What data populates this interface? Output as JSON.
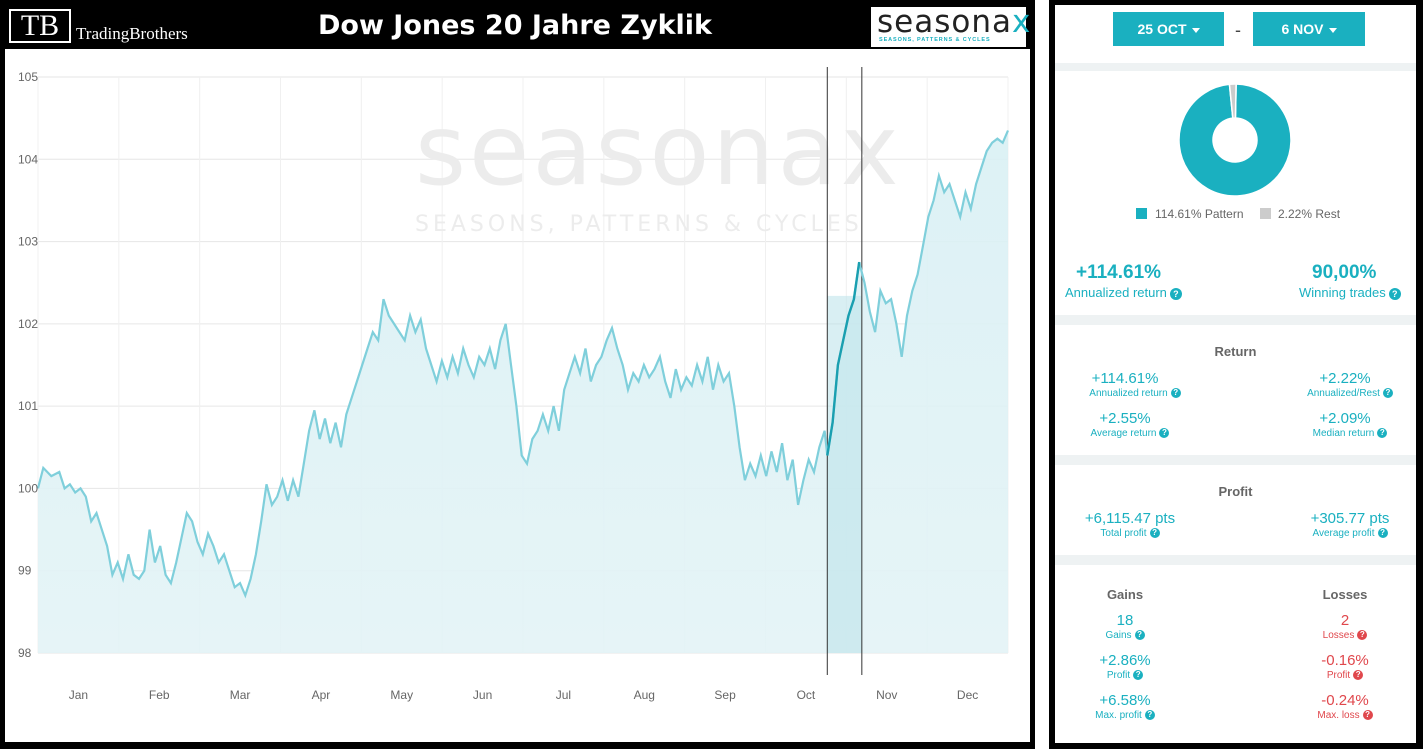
{
  "header": {
    "logo_mark": "TB",
    "logo_name": "TradingBrothers",
    "title": "Dow Jones 20 Jahre Zyklik",
    "brand": "seasona",
    "brand_x": "x",
    "brand_tagline": "SEASONS, PATTERNS & CYCLES"
  },
  "watermark": {
    "word": "seasonax",
    "tagline": "SEASONS, PATTERNS & CYCLES"
  },
  "colors": {
    "accent": "#1ab0c0",
    "line": "#7fcfdb",
    "highlight_line": "#1a9fb0",
    "loss": "#e0474c",
    "rest": "#cccccc"
  },
  "chart_data": {
    "type": "line",
    "title": "Dow Jones 20 Jahre Zyklik",
    "xlabel": "",
    "ylabel": "",
    "x_ticks": [
      "Jan",
      "Feb",
      "Mar",
      "Apr",
      "May",
      "Jun",
      "Jul",
      "Aug",
      "Sep",
      "Oct",
      "Nov",
      "Dec"
    ],
    "y_ticks": [
      98,
      99,
      100,
      101,
      102,
      103,
      104,
      105
    ],
    "ylim": [
      98,
      105
    ],
    "xlim": [
      0,
      365
    ],
    "grid": true,
    "highlight_window": {
      "start": "25 OCT",
      "end": "6 NOV",
      "x_start": 297,
      "x_end": 310
    },
    "series": [
      {
        "values": [
          [
            0,
            100.0
          ],
          [
            2,
            100.25
          ],
          [
            5,
            100.15
          ],
          [
            8,
            100.2
          ],
          [
            10,
            100.0
          ],
          [
            12,
            100.05
          ],
          [
            14,
            99.95
          ],
          [
            16,
            100.0
          ],
          [
            18,
            99.9
          ],
          [
            20,
            99.6
          ],
          [
            22,
            99.7
          ],
          [
            24,
            99.5
          ],
          [
            26,
            99.3
          ],
          [
            28,
            98.95
          ],
          [
            30,
            99.1
          ],
          [
            32,
            98.9
          ],
          [
            34,
            99.2
          ],
          [
            36,
            98.95
          ],
          [
            38,
            98.9
          ],
          [
            40,
            99.0
          ],
          [
            42,
            99.5
          ],
          [
            44,
            99.1
          ],
          [
            46,
            99.3
          ],
          [
            48,
            98.95
          ],
          [
            50,
            98.85
          ],
          [
            52,
            99.1
          ],
          [
            54,
            99.4
          ],
          [
            56,
            99.7
          ],
          [
            58,
            99.6
          ],
          [
            60,
            99.35
          ],
          [
            62,
            99.2
          ],
          [
            64,
            99.45
          ],
          [
            66,
            99.3
          ],
          [
            68,
            99.1
          ],
          [
            70,
            99.2
          ],
          [
            72,
            99.0
          ],
          [
            74,
            98.8
          ],
          [
            76,
            98.85
          ],
          [
            78,
            98.7
          ],
          [
            80,
            98.9
          ],
          [
            82,
            99.2
          ],
          [
            84,
            99.6
          ],
          [
            86,
            100.05
          ],
          [
            88,
            99.8
          ],
          [
            90,
            99.9
          ],
          [
            92,
            100.1
          ],
          [
            94,
            99.85
          ],
          [
            96,
            100.1
          ],
          [
            98,
            99.9
          ],
          [
            100,
            100.3
          ],
          [
            102,
            100.7
          ],
          [
            104,
            100.95
          ],
          [
            106,
            100.6
          ],
          [
            108,
            100.85
          ],
          [
            110,
            100.55
          ],
          [
            112,
            100.8
          ],
          [
            114,
            100.5
          ],
          [
            116,
            100.9
          ],
          [
            118,
            101.1
          ],
          [
            120,
            101.3
          ],
          [
            122,
            101.5
          ],
          [
            124,
            101.7
          ],
          [
            126,
            101.9
          ],
          [
            128,
            101.8
          ],
          [
            130,
            102.3
          ],
          [
            132,
            102.1
          ],
          [
            134,
            102.0
          ],
          [
            136,
            101.9
          ],
          [
            138,
            101.8
          ],
          [
            140,
            102.1
          ],
          [
            142,
            101.9
          ],
          [
            144,
            102.05
          ],
          [
            146,
            101.7
          ],
          [
            148,
            101.5
          ],
          [
            150,
            101.3
          ],
          [
            152,
            101.55
          ],
          [
            154,
            101.35
          ],
          [
            156,
            101.6
          ],
          [
            158,
            101.4
          ],
          [
            160,
            101.7
          ],
          [
            162,
            101.5
          ],
          [
            164,
            101.35
          ],
          [
            166,
            101.6
          ],
          [
            168,
            101.5
          ],
          [
            170,
            101.7
          ],
          [
            172,
            101.45
          ],
          [
            174,
            101.8
          ],
          [
            176,
            102.0
          ],
          [
            178,
            101.5
          ],
          [
            180,
            101.0
          ],
          [
            182,
            100.4
          ],
          [
            184,
            100.3
          ],
          [
            186,
            100.6
          ],
          [
            188,
            100.7
          ],
          [
            190,
            100.9
          ],
          [
            192,
            100.7
          ],
          [
            194,
            101.0
          ],
          [
            196,
            100.7
          ],
          [
            198,
            101.2
          ],
          [
            200,
            101.4
          ],
          [
            202,
            101.6
          ],
          [
            204,
            101.4
          ],
          [
            206,
            101.7
          ],
          [
            208,
            101.3
          ],
          [
            210,
            101.5
          ],
          [
            212,
            101.6
          ],
          [
            214,
            101.8
          ],
          [
            216,
            101.95
          ],
          [
            218,
            101.7
          ],
          [
            220,
            101.5
          ],
          [
            222,
            101.2
          ],
          [
            224,
            101.4
          ],
          [
            226,
            101.3
          ],
          [
            228,
            101.5
          ],
          [
            230,
            101.35
          ],
          [
            232,
            101.45
          ],
          [
            234,
            101.6
          ],
          [
            236,
            101.3
          ],
          [
            238,
            101.1
          ],
          [
            240,
            101.45
          ],
          [
            242,
            101.2
          ],
          [
            244,
            101.35
          ],
          [
            246,
            101.25
          ],
          [
            248,
            101.5
          ],
          [
            250,
            101.3
          ],
          [
            252,
            101.6
          ],
          [
            254,
            101.2
          ],
          [
            256,
            101.5
          ],
          [
            258,
            101.3
          ],
          [
            260,
            101.4
          ],
          [
            262,
            101.0
          ],
          [
            264,
            100.5
          ],
          [
            266,
            100.1
          ],
          [
            268,
            100.3
          ],
          [
            270,
            100.15
          ],
          [
            272,
            100.4
          ],
          [
            274,
            100.15
          ],
          [
            276,
            100.45
          ],
          [
            278,
            100.2
          ],
          [
            280,
            100.55
          ],
          [
            282,
            100.1
          ],
          [
            284,
            100.35
          ],
          [
            286,
            99.8
          ],
          [
            288,
            100.1
          ],
          [
            290,
            100.35
          ],
          [
            292,
            100.2
          ],
          [
            294,
            100.5
          ],
          [
            296,
            100.7
          ],
          [
            297,
            100.4
          ],
          [
            299,
            100.8
          ],
          [
            301,
            101.5
          ],
          [
            303,
            101.8
          ],
          [
            305,
            102.1
          ],
          [
            307,
            102.3
          ],
          [
            309,
            102.75
          ],
          [
            311,
            102.5
          ],
          [
            313,
            102.15
          ],
          [
            315,
            101.9
          ],
          [
            317,
            102.4
          ],
          [
            319,
            102.25
          ],
          [
            321,
            102.3
          ],
          [
            323,
            102.0
          ],
          [
            325,
            101.6
          ],
          [
            327,
            102.1
          ],
          [
            329,
            102.4
          ],
          [
            331,
            102.6
          ],
          [
            333,
            102.95
          ],
          [
            335,
            103.3
          ],
          [
            337,
            103.5
          ],
          [
            339,
            103.8
          ],
          [
            341,
            103.6
          ],
          [
            343,
            103.7
          ],
          [
            345,
            103.5
          ],
          [
            347,
            103.3
          ],
          [
            349,
            103.6
          ],
          [
            351,
            103.4
          ],
          [
            353,
            103.7
          ],
          [
            355,
            103.9
          ],
          [
            357,
            104.1
          ],
          [
            359,
            104.2
          ],
          [
            361,
            104.25
          ],
          [
            363,
            104.2
          ],
          [
            365,
            104.35
          ]
        ]
      }
    ]
  },
  "stats": {
    "date_from": "25 OCT",
    "date_sep": "-",
    "date_to": "6 NOV",
    "pie": {
      "pattern_pct": 114.61,
      "rest_pct": 2.22
    },
    "legend_pattern": "114.61% Pattern",
    "legend_rest": "2.22% Rest",
    "annualized_return": "+114.61%",
    "annualized_return_label": "Annualized return",
    "winning_trades": "90,00%",
    "winning_trades_label": "Winning trades",
    "return_title": "Return",
    "ret_annualized": "+114.61%",
    "ret_annualized_label": "Annualized return",
    "ret_rest": "+2.22%",
    "ret_rest_label": "Annualized/Rest",
    "ret_avg": "+2.55%",
    "ret_avg_label": "Average return",
    "ret_median": "+2.09%",
    "ret_median_label": "Median return",
    "profit_title": "Profit",
    "total_profit": "+6,115.47 pts",
    "total_profit_label": "Total profit",
    "avg_profit": "+305.77 pts",
    "avg_profit_label": "Average profit",
    "gains_title": "Gains",
    "losses_title": "Losses",
    "gains_count": "18",
    "gains_count_label": "Gains",
    "losses_count": "2",
    "losses_count_label": "Losses",
    "gains_profit": "+2.86%",
    "gains_profit_label": "Profit",
    "losses_profit": "-0.16%",
    "losses_profit_label": "Profit",
    "gains_max": "+6.58%",
    "gains_max_label": "Max. profit",
    "losses_max": "-0.24%",
    "losses_max_label": "Max. loss",
    "help_glyph": "?"
  }
}
